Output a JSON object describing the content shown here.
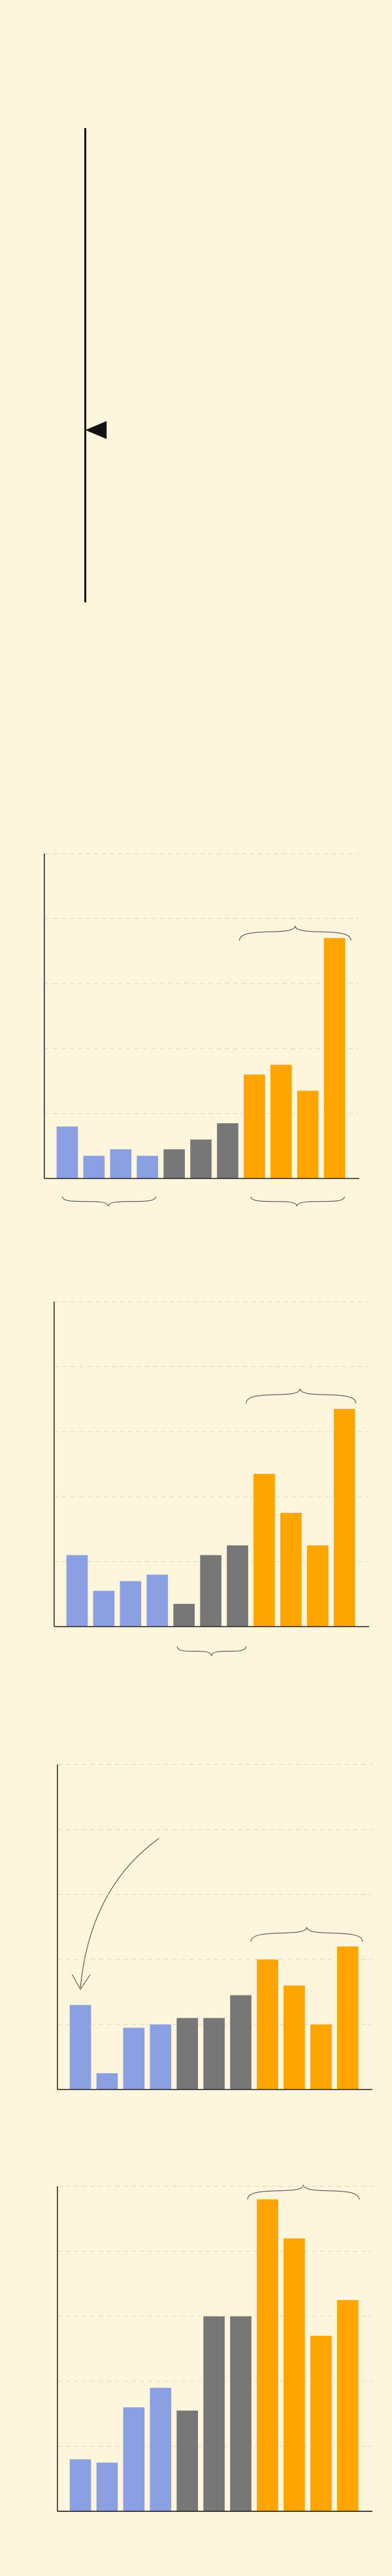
{
  "chart_data": [
    {
      "type": "bar",
      "values": [
        16,
        7,
        9,
        7,
        9,
        12,
        17,
        32,
        35,
        27,
        74
      ],
      "colors": [
        "#8aa0e2",
        "#8aa0e2",
        "#8aa0e2",
        "#8aa0e2",
        "#777777",
        "#777777",
        "#777777",
        "#ffa500",
        "#ffa500",
        "#ffa500",
        "#ffa500"
      ],
      "ylim": [
        0,
        100
      ],
      "yticks": [
        0,
        20,
        40,
        60,
        80,
        100
      ],
      "grid": true
    },
    {
      "type": "bar",
      "values": [
        22,
        11,
        14,
        16,
        7,
        22,
        25,
        47,
        35,
        25,
        67
      ],
      "colors": [
        "#8aa0e2",
        "#8aa0e2",
        "#8aa0e2",
        "#8aa0e2",
        "#777777",
        "#777777",
        "#777777",
        "#ffa500",
        "#ffa500",
        "#ffa500",
        "#ffa500"
      ],
      "ylim": [
        0,
        100
      ],
      "yticks": [
        0,
        20,
        40,
        60,
        80,
        100
      ],
      "grid": true
    },
    {
      "type": "bar",
      "values": [
        26,
        5,
        19,
        20,
        22,
        22,
        29,
        40,
        32,
        20,
        44
      ],
      "colors": [
        "#8aa0e2",
        "#8aa0e2",
        "#8aa0e2",
        "#8aa0e2",
        "#777777",
        "#777777",
        "#777777",
        "#ffa500",
        "#ffa500",
        "#ffa500",
        "#ffa500"
      ],
      "ylim": [
        0,
        100
      ],
      "yticks": [
        0,
        20,
        40,
        60,
        80,
        100
      ],
      "grid": true
    },
    {
      "type": "bar",
      "values": [
        16,
        15,
        32,
        38,
        31,
        60,
        60,
        96,
        84,
        54,
        65
      ],
      "colors": [
        "#8aa0e2",
        "#8aa0e2",
        "#8aa0e2",
        "#8aa0e2",
        "#777777",
        "#777777",
        "#777777",
        "#ffa500",
        "#ffa500",
        "#ffa500",
        "#ffa500"
      ],
      "ylim": [
        0,
        100
      ],
      "yticks": [
        0,
        20,
        40,
        60,
        80,
        100
      ],
      "grid": true
    }
  ]
}
